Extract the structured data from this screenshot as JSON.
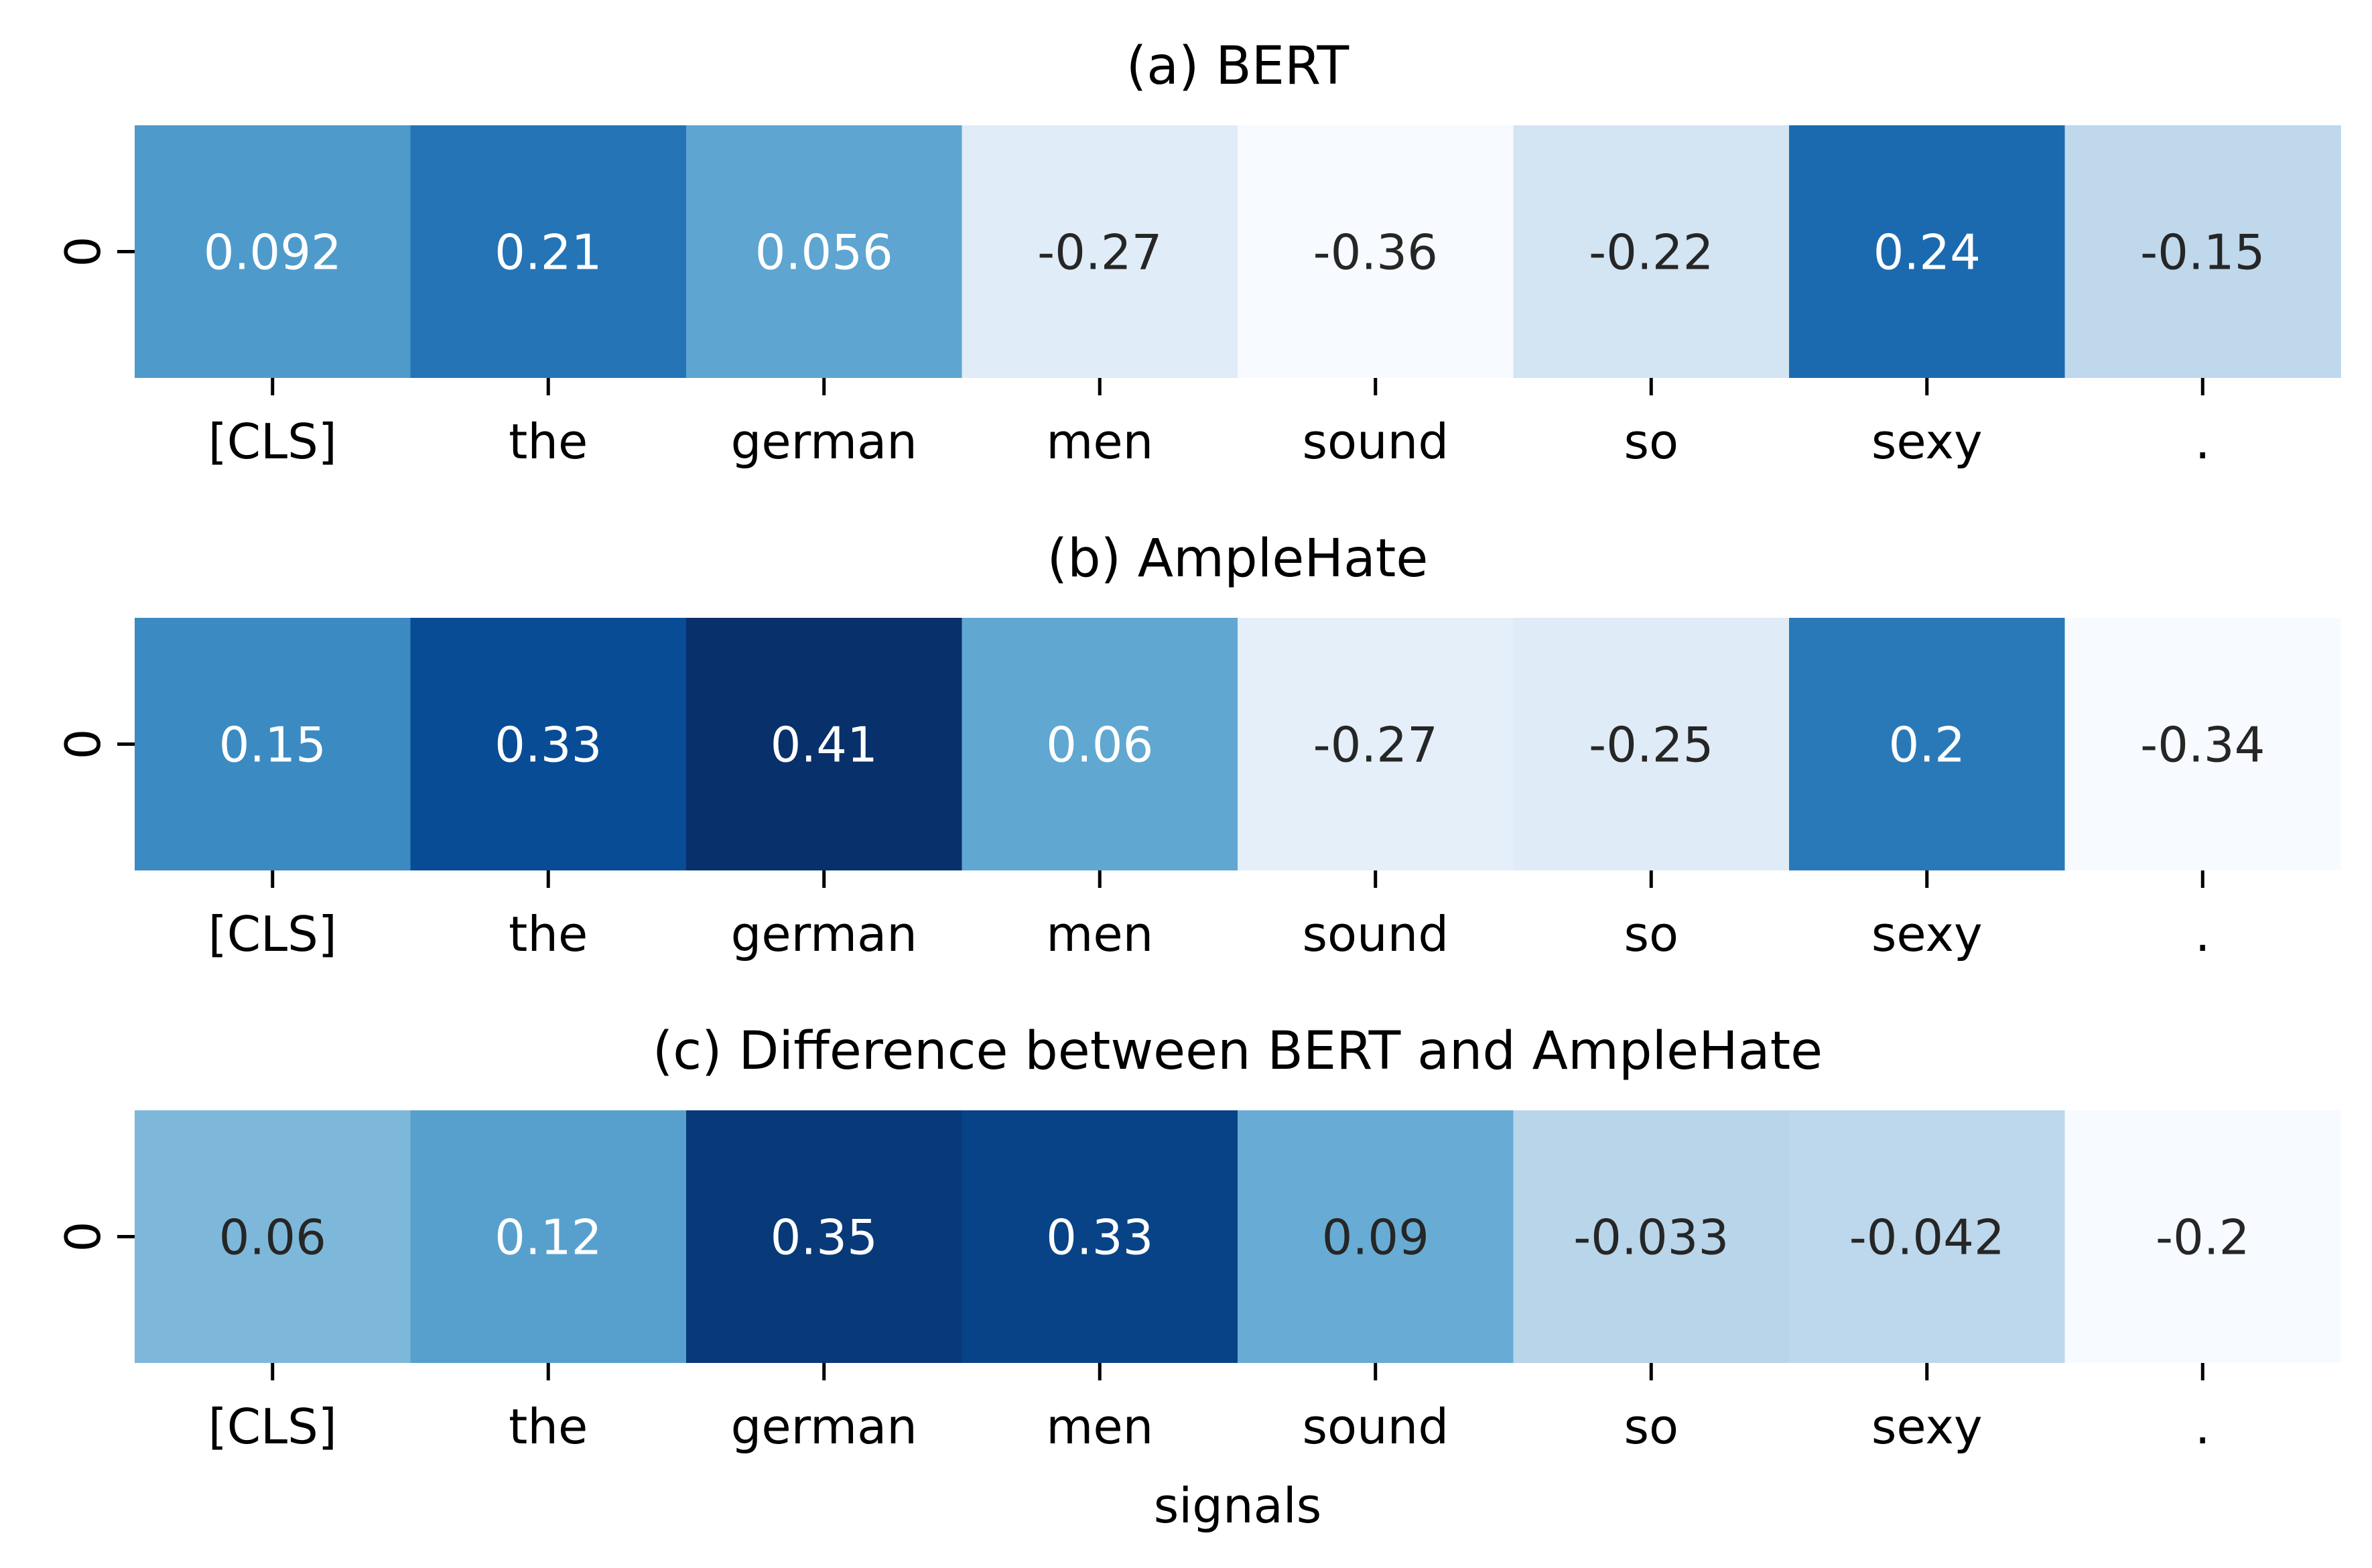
{
  "chart_data": [
    {
      "type": "heatmap",
      "title": "(a) BERT",
      "categories": [
        "[CLS]",
        "the",
        "german",
        "men",
        "sound",
        "so",
        "sexy",
        "."
      ],
      "rows": [
        "0"
      ],
      "values": [
        0.092,
        0.21,
        0.056,
        -0.27,
        -0.36,
        -0.22,
        0.24,
        -0.15
      ],
      "value_labels": [
        "0.092",
        "0.21",
        "0.056",
        "-0.27",
        "-0.36",
        "-0.22",
        "0.24",
        "-0.15"
      ],
      "xlabel": "",
      "colormap": "Blues",
      "range": [
        -0.36,
        0.41
      ]
    },
    {
      "type": "heatmap",
      "title": "(b) AmpleHate",
      "categories": [
        "[CLS]",
        "the",
        "german",
        "men",
        "sound",
        "so",
        "sexy",
        "."
      ],
      "rows": [
        "0"
      ],
      "values": [
        0.15,
        0.33,
        0.41,
        0.06,
        -0.27,
        -0.25,
        0.2,
        -0.34
      ],
      "value_labels": [
        "0.15",
        "0.33",
        "0.41",
        "0.06",
        "-0.27",
        "-0.25",
        "0.2",
        "-0.34"
      ],
      "xlabel": "",
      "colormap": "Blues",
      "range": [
        -0.34,
        0.41
      ]
    },
    {
      "type": "heatmap",
      "title": "(c) Difference between BERT and AmpleHate",
      "categories": [
        "[CLS]",
        "the",
        "german",
        "men",
        "sound",
        "so",
        "sexy",
        "."
      ],
      "rows": [
        "0"
      ],
      "values": [
        0.06,
        0.12,
        0.35,
        0.33,
        0.09,
        -0.033,
        -0.042,
        -0.2
      ],
      "value_labels": [
        "0.06",
        "0.12",
        "0.35",
        "0.33",
        "0.09",
        "-0.033",
        "-0.042",
        "-0.2"
      ],
      "xlabel": "signals",
      "colormap": "Blues",
      "range": [
        -0.2,
        0.37
      ]
    }
  ],
  "colors": {
    "scale": [
      "#f7fbff",
      "#deebf7",
      "#c6dbef",
      "#9ecae1",
      "#6baed6",
      "#4292c6",
      "#2171b5",
      "#08519c",
      "#08306b"
    ],
    "light_text": "#ffffff",
    "dark_text": "#262626"
  }
}
